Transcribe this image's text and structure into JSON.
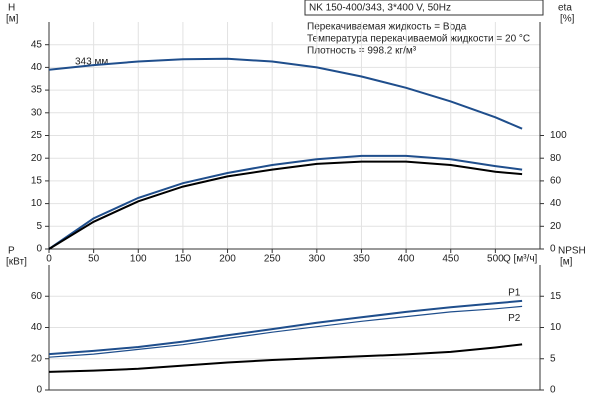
{
  "chart_data": [
    {
      "type": "line",
      "title": "NK 150-400/343, 3*400 V, 50Hz",
      "annotations": [
        "Перекачиваемая жидкость = Вода",
        "Температура перекачиваемой жидкости = 20 °C",
        "Плотность = 998.2 кг/м³",
        "343 мм"
      ],
      "ylabel": "H",
      "yunit": "[м]",
      "y2label": "eta",
      "y2unit": "[%]",
      "xlabel": "Q [м³/ч]",
      "x": [
        0,
        50,
        100,
        150,
        200,
        250,
        300,
        350,
        400,
        450,
        500,
        530
      ],
      "xlim": [
        0,
        550
      ],
      "xticks": [
        0,
        50,
        100,
        150,
        200,
        250,
        300,
        350,
        400,
        450,
        500
      ],
      "ylim": [
        0,
        50
      ],
      "yticks": [
        0,
        5,
        10,
        15,
        20,
        25,
        30,
        35,
        40,
        45
      ],
      "y2lim": [
        0,
        200
      ],
      "y2ticks": [
        0,
        20,
        40,
        60,
        80,
        100
      ],
      "grid": true,
      "series": [
        {
          "color": "#1f4e8c",
          "values": [
            39.5,
            40.5,
            41.3,
            41.8,
            41.9,
            41.3,
            40,
            38,
            35.5,
            32.5,
            29,
            26.5
          ]
        },
        {
          "color": "#1f4e8c",
          "axis": "y2",
          "values": [
            0,
            27,
            45,
            58,
            67,
            74,
            79,
            82,
            82,
            79,
            73,
            70
          ]
        },
        {
          "color": "#000000",
          "axis": "y2",
          "values": [
            0,
            24,
            42,
            55,
            64,
            70,
            75,
            77,
            77,
            74,
            68,
            66
          ]
        }
      ]
    },
    {
      "type": "line",
      "ylabel": "P",
      "yunit": "[кВт]",
      "y2label": "NPSH",
      "y2unit": "[м]",
      "x": [
        0,
        50,
        100,
        150,
        200,
        250,
        300,
        350,
        400,
        450,
        500,
        530
      ],
      "xlim": [
        0,
        550
      ],
      "ylim": [
        0,
        80
      ],
      "yticks": [
        0,
        20,
        40,
        60
      ],
      "y2lim": [
        0,
        20
      ],
      "y2ticks": [
        0,
        5,
        10,
        15
      ],
      "grid": true,
      "series": [
        {
          "name": "P1",
          "color": "#1f4e8c",
          "values": [
            23,
            25,
            27.5,
            31,
            35,
            39,
            43,
            46.5,
            50,
            53,
            55.5,
            57
          ]
        },
        {
          "name": "P2",
          "color": "#1f4e8c",
          "values": [
            21,
            23,
            26,
            29,
            33,
            37,
            40.5,
            44,
            47,
            50,
            52,
            53.5
          ]
        },
        {
          "color": "#000000",
          "axis": "y2",
          "values": [
            2.9,
            3.1,
            3.4,
            3.9,
            4.4,
            4.8,
            5.1,
            5.4,
            5.7,
            6.1,
            6.8,
            7.3
          ]
        }
      ]
    }
  ]
}
